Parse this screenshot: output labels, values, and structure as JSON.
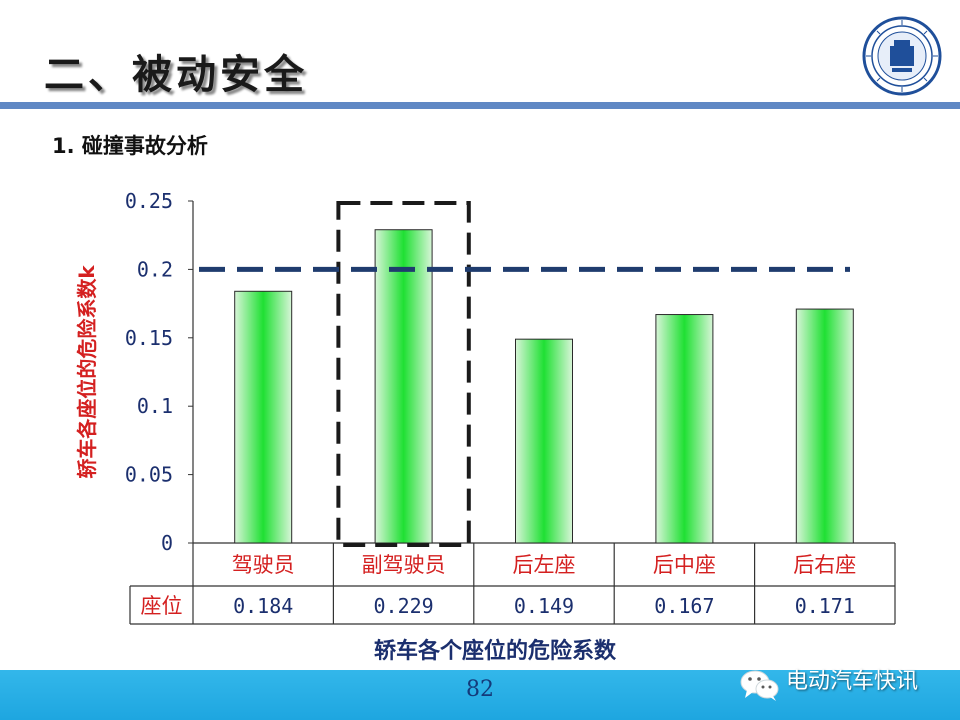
{
  "slide": {
    "title": "二、被动安全",
    "subtitle": "1. 碰撞事故分析",
    "caption": "轿车各个座位的危险系数",
    "page_number": "82",
    "watermark": "电动汽车快讯"
  },
  "logo": {
    "icon": "university-seal-icon"
  },
  "colors": {
    "title_rule": "#5f88c4",
    "footer": "#1ea6e0",
    "bar_edge": "#d8f5d8",
    "bar_center": "#1fe033",
    "ylabel": "#d42020",
    "threshold": "#1f3c6e",
    "table_header": "#d42020",
    "table_value": "#1b2f6e"
  },
  "chart_data": {
    "type": "bar",
    "ylabel": "轿车各座位的危险系数k",
    "ylim": [
      0,
      0.25
    ],
    "y_ticks": [
      "0",
      "0.05",
      "0.1",
      "0.15",
      "0.2",
      "0.25"
    ],
    "y_tick_values": [
      0,
      0.05,
      0.1,
      0.15,
      0.2,
      0.25
    ],
    "categories": [
      "驾驶员",
      "副驾驶员",
      "后左座",
      "后中座",
      "后右座"
    ],
    "values": [
      0.184,
      0.229,
      0.149,
      0.167,
      0.171
    ],
    "value_labels": [
      "0.184",
      "0.229",
      "0.149",
      "0.167",
      "0.171"
    ],
    "table_row_label": "座位",
    "threshold": 0.2,
    "highlight_index": 1,
    "grid": false
  }
}
